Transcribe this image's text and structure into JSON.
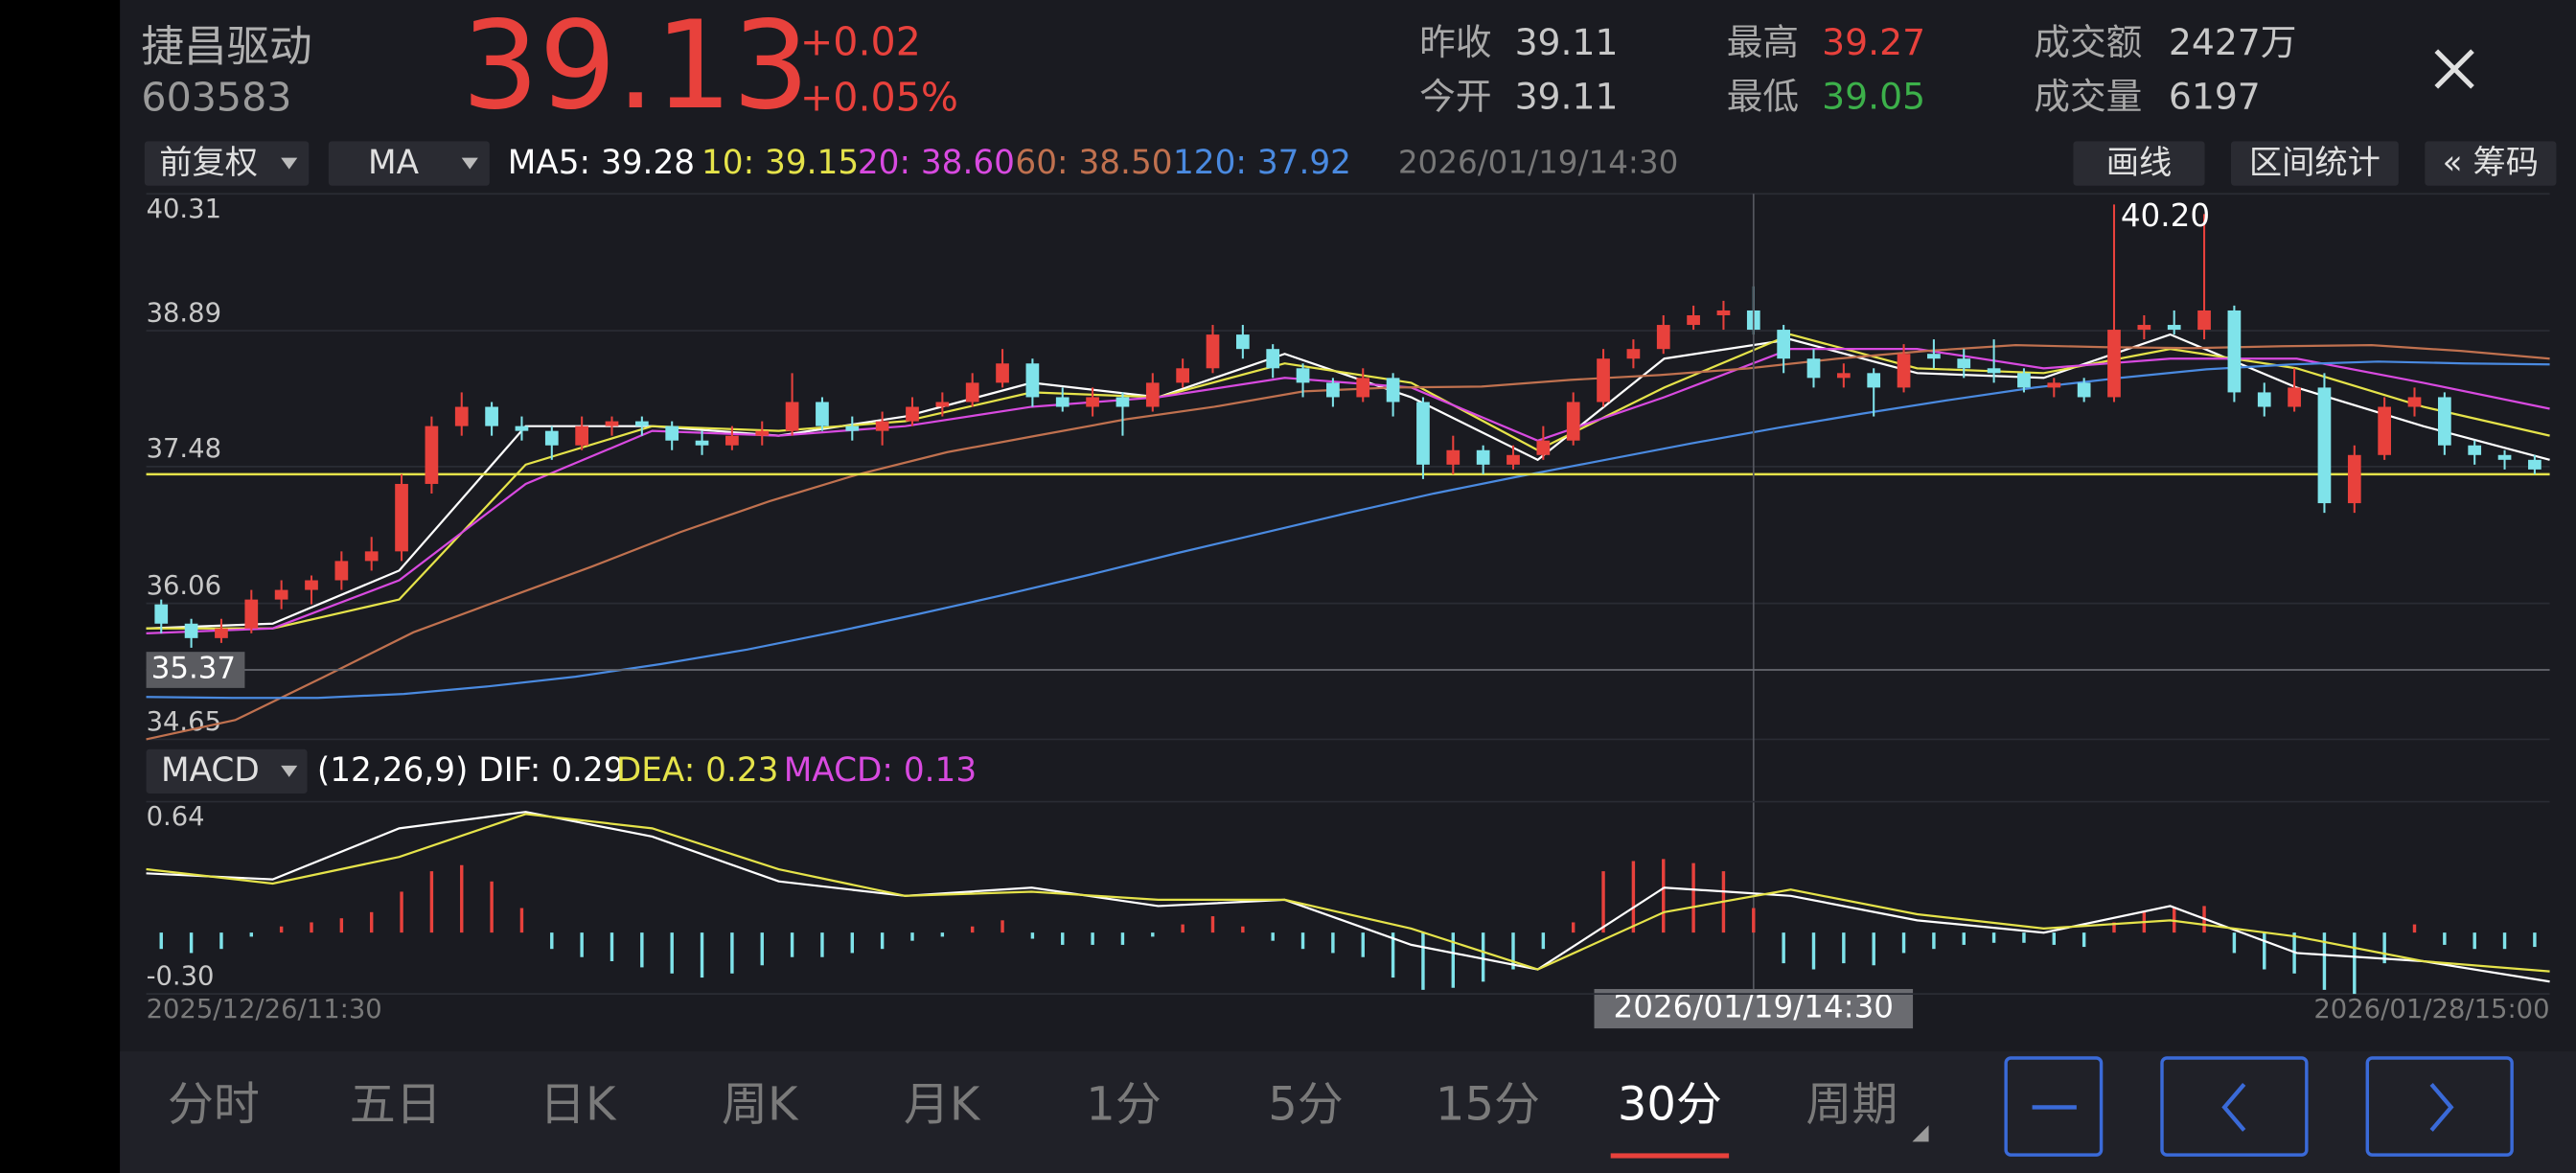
{
  "header": {
    "name": "捷昌驱动",
    "code": "603583",
    "price": "39.13",
    "change": "+0.02",
    "change_pct": "+0.05%",
    "stats": [
      {
        "label": "昨收",
        "value": "39.11",
        "color": "#c8c8c8"
      },
      {
        "label": "今开",
        "value": "39.11",
        "color": "#c8c8c8"
      },
      {
        "label": "最高",
        "value": "39.27",
        "color": "#e8413c"
      },
      {
        "label": "最低",
        "value": "39.05",
        "color": "#3cb04a"
      },
      {
        "label": "成交额",
        "value": "2427万",
        "color": "#c8c8c8"
      },
      {
        "label": "成交量",
        "value": "6197",
        "color": "#c8c8c8"
      }
    ]
  },
  "toolbar": {
    "adjust": "前复权",
    "indicator": "MA",
    "ma_legend": [
      {
        "text": "MA5: 39.28",
        "color": "#ffffff"
      },
      {
        "text": "10: 39.15",
        "color": "#e5e34a"
      },
      {
        "text": "20: 38.60",
        "color": "#d84ae0"
      },
      {
        "text": "60: 38.50",
        "color": "#c0714f"
      },
      {
        "text": "120: 37.92",
        "color": "#4a8ae0"
      }
    ],
    "time": "2026/01/19/14:30",
    "buttons": [
      "画线",
      "区间统计",
      "« 筹码"
    ]
  },
  "macd_bar": {
    "indicator": "MACD",
    "legend": [
      {
        "text": "(12,26,9) DIF: 0.29",
        "color": "#ffffff"
      },
      {
        "text": "DEA: 0.23",
        "color": "#e5e34a"
      },
      {
        "text": "MACD: 0.13",
        "color": "#d84ae0"
      }
    ]
  },
  "chart_data": [
    {
      "type": "candlestick",
      "ylim": [
        34.65,
        40.31
      ],
      "yticks": [
        40.31,
        38.89,
        37.48,
        36.06,
        34.65
      ],
      "up_color": "#e8413c",
      "down_color": "#7fe3ea",
      "candles": [
        [
          36.05,
          36.1,
          35.75,
          35.85
        ],
        [
          35.85,
          35.9,
          35.6,
          35.7
        ],
        [
          35.7,
          35.9,
          35.65,
          35.8
        ],
        [
          35.8,
          36.2,
          35.75,
          36.1
        ],
        [
          36.1,
          36.3,
          36.0,
          36.2
        ],
        [
          36.2,
          36.35,
          36.05,
          36.3
        ],
        [
          36.3,
          36.6,
          36.2,
          36.5
        ],
        [
          36.5,
          36.75,
          36.4,
          36.6
        ],
        [
          36.6,
          37.4,
          36.5,
          37.3
        ],
        [
          37.3,
          38.0,
          37.2,
          37.9
        ],
        [
          37.9,
          38.25,
          37.8,
          38.1
        ],
        [
          38.1,
          38.15,
          37.8,
          37.9
        ],
        [
          37.9,
          38.0,
          37.75,
          37.85
        ],
        [
          37.85,
          37.9,
          37.55,
          37.7
        ],
        [
          37.7,
          38.0,
          37.65,
          37.9
        ],
        [
          37.9,
          38.0,
          37.8,
          37.95
        ],
        [
          37.95,
          38.0,
          37.8,
          37.9
        ],
        [
          37.9,
          37.95,
          37.65,
          37.75
        ],
        [
          37.75,
          37.85,
          37.6,
          37.7
        ],
        [
          37.7,
          37.9,
          37.65,
          37.8
        ],
        [
          37.8,
          37.95,
          37.7,
          37.85
        ],
        [
          37.85,
          38.45,
          37.8,
          38.15
        ],
        [
          38.15,
          38.2,
          37.85,
          37.9
        ],
        [
          37.9,
          38.0,
          37.75,
          37.85
        ],
        [
          37.85,
          38.05,
          37.7,
          37.95
        ],
        [
          37.95,
          38.2,
          37.9,
          38.1
        ],
        [
          38.1,
          38.25,
          38.0,
          38.15
        ],
        [
          38.15,
          38.45,
          38.1,
          38.35
        ],
        [
          38.35,
          38.7,
          38.3,
          38.55
        ],
        [
          38.55,
          38.6,
          38.1,
          38.2
        ],
        [
          38.2,
          38.3,
          38.05,
          38.1
        ],
        [
          38.1,
          38.3,
          38.0,
          38.2
        ],
        [
          38.2,
          38.25,
          37.8,
          38.1
        ],
        [
          38.1,
          38.45,
          38.05,
          38.35
        ],
        [
          38.35,
          38.6,
          38.3,
          38.5
        ],
        [
          38.5,
          38.95,
          38.45,
          38.85
        ],
        [
          38.85,
          38.95,
          38.6,
          38.7
        ],
        [
          38.7,
          38.75,
          38.4,
          38.5
        ],
        [
          38.5,
          38.55,
          38.2,
          38.35
        ],
        [
          38.35,
          38.4,
          38.1,
          38.2
        ],
        [
          38.2,
          38.5,
          38.15,
          38.4
        ],
        [
          38.4,
          38.45,
          38.0,
          38.15
        ],
        [
          38.15,
          38.2,
          37.35,
          37.5
        ],
        [
          37.5,
          37.8,
          37.4,
          37.65
        ],
        [
          37.65,
          37.7,
          37.4,
          37.5
        ],
        [
          37.5,
          37.7,
          37.45,
          37.6
        ],
        [
          37.6,
          37.9,
          37.55,
          37.75
        ],
        [
          37.75,
          38.25,
          37.7,
          38.15
        ],
        [
          38.15,
          38.7,
          38.1,
          38.6
        ],
        [
          38.6,
          38.8,
          38.5,
          38.7
        ],
        [
          38.7,
          39.05,
          38.65,
          38.95
        ],
        [
          38.95,
          39.15,
          38.9,
          39.05
        ],
        [
          39.05,
          39.2,
          38.9,
          39.1
        ],
        [
          39.1,
          39.35,
          38.85,
          38.9
        ],
        [
          38.9,
          38.95,
          38.45,
          38.6
        ],
        [
          38.6,
          38.7,
          38.3,
          38.4
        ],
        [
          38.4,
          38.55,
          38.3,
          38.45
        ],
        [
          38.45,
          38.5,
          38.0,
          38.3
        ],
        [
          38.3,
          38.75,
          38.25,
          38.65
        ],
        [
          38.65,
          38.8,
          38.5,
          38.6
        ],
        [
          38.6,
          38.7,
          38.4,
          38.5
        ],
        [
          38.5,
          38.8,
          38.35,
          38.45
        ],
        [
          38.45,
          38.5,
          38.25,
          38.3
        ],
        [
          38.3,
          38.4,
          38.2,
          38.35
        ],
        [
          38.35,
          38.4,
          38.15,
          38.2
        ],
        [
          38.2,
          40.2,
          38.15,
          38.9
        ],
        [
          38.9,
          39.05,
          38.8,
          38.95
        ],
        [
          38.95,
          39.1,
          38.85,
          38.9
        ],
        [
          38.9,
          40.1,
          38.8,
          39.1
        ],
        [
          39.1,
          39.15,
          38.15,
          38.25
        ],
        [
          38.25,
          38.35,
          38.0,
          38.1
        ],
        [
          38.1,
          38.5,
          38.05,
          38.3
        ],
        [
          38.3,
          38.45,
          37.0,
          37.1
        ],
        [
          37.1,
          37.7,
          37.0,
          37.6
        ],
        [
          37.6,
          38.2,
          37.55,
          38.1
        ],
        [
          38.1,
          38.3,
          38.0,
          38.2
        ],
        [
          38.2,
          38.25,
          37.6,
          37.7
        ],
        [
          37.7,
          37.75,
          37.5,
          37.6
        ],
        [
          37.6,
          37.65,
          37.45,
          37.55
        ],
        [
          37.55,
          37.6,
          37.4,
          37.45
        ]
      ],
      "series": [
        {
          "name": "MA5",
          "color": "#ffffff",
          "values": [
            35.8,
            35.85,
            36.4,
            37.9,
            37.9,
            37.8,
            38.0,
            38.35,
            38.2,
            38.65,
            38.2,
            37.55,
            38.6,
            38.8,
            38.45,
            38.4,
            38.85,
            38.3,
            37.9,
            37.55
          ]
        },
        {
          "name": "MA10",
          "color": "#e5e34a",
          "values": [
            35.8,
            35.8,
            36.1,
            37.5,
            37.9,
            37.85,
            37.95,
            38.25,
            38.2,
            38.55,
            38.35,
            37.65,
            38.3,
            38.85,
            38.5,
            38.45,
            38.7,
            38.5,
            38.1,
            37.8
          ]
        },
        {
          "name": "MA20",
          "color": "#d84ae0",
          "values": [
            35.75,
            35.8,
            36.3,
            37.3,
            37.85,
            37.8,
            37.9,
            38.1,
            38.2,
            38.4,
            38.3,
            37.75,
            38.2,
            38.7,
            38.7,
            38.5,
            38.6,
            38.6,
            38.35,
            38.08
          ]
        },
        {
          "name": "MA60",
          "color": "#c0714f",
          "values": [
            34.65,
            34.85,
            35.3,
            35.76,
            36.1,
            36.44,
            36.8,
            37.12,
            37.4,
            37.63,
            37.8,
            37.97,
            38.1,
            38.26,
            38.3,
            38.31,
            38.38,
            38.43,
            38.5,
            38.6,
            38.68,
            38.74,
            38.72,
            38.71,
            38.73,
            38.74,
            38.68,
            38.6
          ]
        },
        {
          "name": "MA120",
          "color": "#4a8ae0",
          "values": [
            35.09,
            35.08,
            35.08,
            35.12,
            35.2,
            35.3,
            35.43,
            35.58,
            35.76,
            35.95,
            36.15,
            36.36,
            36.58,
            36.79,
            37.0,
            37.2,
            37.38,
            37.55,
            37.72,
            37.88,
            38.03,
            38.17,
            38.3,
            38.4,
            38.49,
            38.54,
            38.57,
            38.55,
            38.54
          ]
        }
      ],
      "horizontal_line": {
        "value": 37.4,
        "color": "#e5e34a"
      },
      "max_label": {
        "index": 65,
        "value": 40.2,
        "label": "40.20"
      },
      "crosshair": {
        "index": 53,
        "value": 35.37,
        "time": "2026/01/19/14:30"
      },
      "x_start": "2025/12/26/11:30",
      "x_end": "2026/01/28/15:00"
    },
    {
      "type": "macd",
      "ylim": [
        -0.3,
        0.64
      ],
      "yticks": [
        0.64,
        {
          "value": -0.3,
          "label": "-0.30"
        }
      ],
      "up_color": "#e8413c",
      "down_color": "#7fe3ea",
      "histogram": [
        -0.08,
        -0.1,
        -0.08,
        -0.02,
        0.03,
        0.05,
        0.07,
        0.1,
        0.2,
        0.3,
        0.33,
        0.25,
        0.12,
        -0.08,
        -0.12,
        -0.14,
        -0.17,
        -0.2,
        -0.22,
        -0.2,
        -0.16,
        -0.12,
        -0.12,
        -0.1,
        -0.08,
        -0.04,
        -0.02,
        0.03,
        0.06,
        -0.03,
        -0.06,
        -0.06,
        -0.06,
        -0.02,
        0.04,
        0.08,
        0.03,
        -0.04,
        -0.08,
        -0.1,
        -0.12,
        -0.22,
        -0.28,
        -0.27,
        -0.24,
        -0.18,
        -0.08,
        0.05,
        0.3,
        0.35,
        0.36,
        0.34,
        0.3,
        0.12,
        -0.15,
        -0.18,
        -0.15,
        -0.16,
        -0.1,
        -0.08,
        -0.06,
        -0.05,
        -0.05,
        -0.06,
        -0.07,
        0.05,
        0.1,
        0.12,
        0.13,
        -0.1,
        -0.18,
        -0.2,
        -0.28,
        -0.3,
        -0.15,
        0.04,
        -0.06,
        -0.08,
        -0.08,
        -0.07
      ],
      "series": [
        {
          "name": "DIF",
          "color": "#ffffff",
          "values": [
            0.29,
            0.26,
            0.51,
            0.59,
            0.47,
            0.25,
            0.18,
            0.22,
            0.13,
            0.16,
            -0.06,
            -0.18,
            0.22,
            0.18,
            0.06,
            0.0,
            0.13,
            -0.1,
            -0.14,
            -0.24
          ]
        },
        {
          "name": "DEA",
          "color": "#e5e34a",
          "values": [
            0.31,
            0.24,
            0.37,
            0.58,
            0.51,
            0.31,
            0.18,
            0.2,
            0.16,
            0.16,
            0.02,
            -0.18,
            0.1,
            0.21,
            0.09,
            0.02,
            0.06,
            -0.02,
            -0.14,
            -0.19
          ]
        }
      ]
    }
  ],
  "footer": {
    "tabs": [
      "分时",
      "五日",
      "日K",
      "周K",
      "月K",
      "1分",
      "5分",
      "15分",
      "30分",
      "周期"
    ],
    "selected": 8
  }
}
